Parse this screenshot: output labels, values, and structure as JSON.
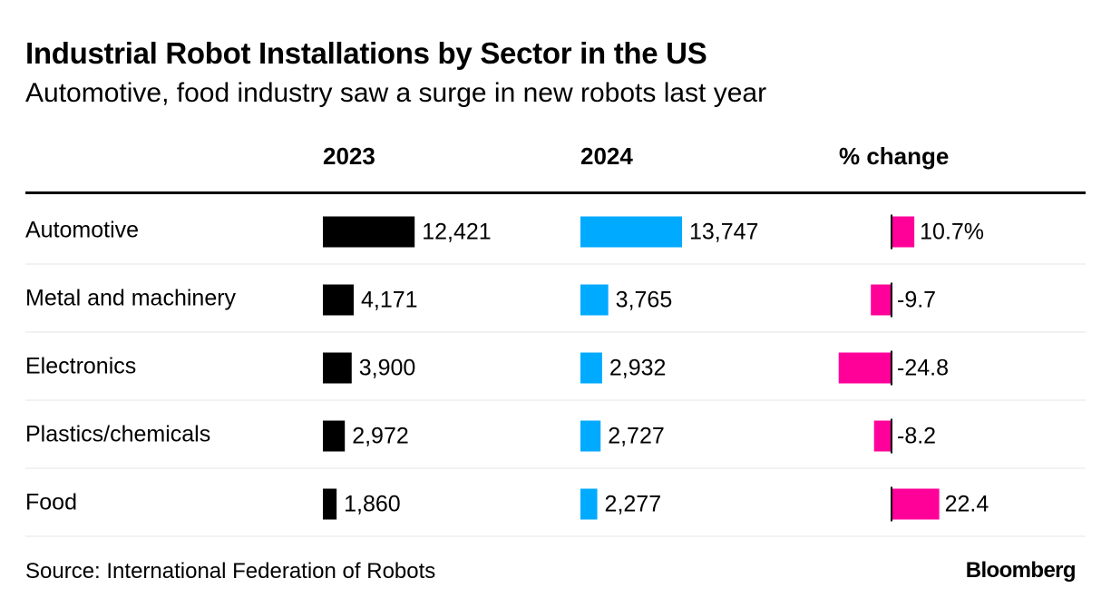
{
  "title": "Industrial Robot Installations by Sector in the US",
  "subtitle": "Automotive, food industry saw a surge in new robots last year",
  "source": "Source: International Federation of Robots",
  "brand": "Bloomberg",
  "colors": {
    "y2023": "#000000",
    "y2024": "#00aaff",
    "change": "#ff0099",
    "row_divider": "#e6e6e6"
  },
  "chart_data": {
    "type": "table",
    "columns": [
      "2023",
      "2024",
      "% change"
    ],
    "rows": [
      {
        "sector": "Automotive",
        "v2023": 12421,
        "v2024": 13747,
        "change": 10.7,
        "label2023": "12,421",
        "label2024": "13,747",
        "labelChange": "10.7%"
      },
      {
        "sector": "Metal and machinery",
        "v2023": 4171,
        "v2024": 3765,
        "change": -9.7,
        "label2023": "4,171",
        "label2024": "3,765",
        "labelChange": "-9.7"
      },
      {
        "sector": "Electronics",
        "v2023": 3900,
        "v2024": 2932,
        "change": -24.8,
        "label2023": "3,900",
        "label2024": "2,932",
        "labelChange": "-24.8"
      },
      {
        "sector": "Plastics/chemicals",
        "v2023": 2972,
        "v2024": 2727,
        "change": -8.2,
        "label2023": "2,972",
        "label2024": "2,727",
        "labelChange": "-8.2"
      },
      {
        "sector": "Food",
        "v2023": 1860,
        "v2024": 2277,
        "change": 22.4,
        "label2023": "1,860",
        "label2024": "2,277",
        "labelChange": "22.4"
      }
    ]
  }
}
